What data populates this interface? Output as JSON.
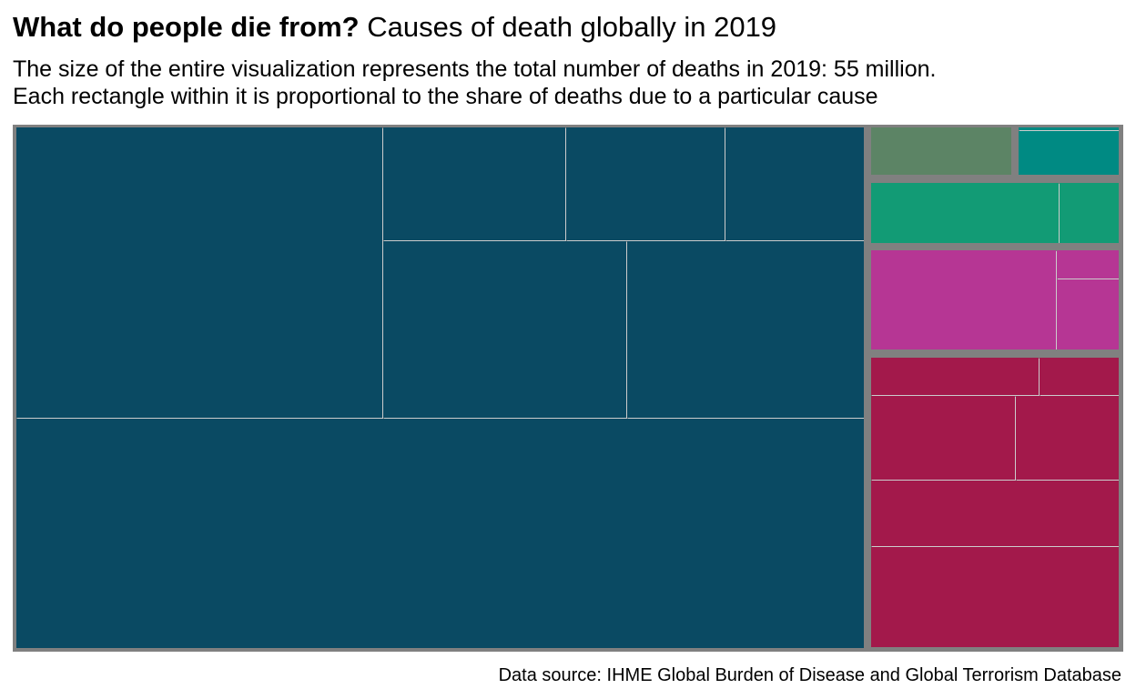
{
  "title": {
    "bold": "What do people die from?",
    "rest": "Causes of death globally in 2019"
  },
  "subtitle": [
    "The size of the entire visualization represents the total number of deaths in 2019: 55 million.",
    "Each rectangle within it is proportional to the share of deaths due to a particular cause"
  ],
  "source": "Data source: IHME Global Burden of Disease and Global Terrorism Database",
  "chart_data": {
    "type": "treemap",
    "total": "55 million",
    "labels_shown": false,
    "background": "#808080",
    "divider_color": "#cccccc",
    "groups": [
      {
        "color": "#0a4a63",
        "cells": 7
      },
      {
        "color": "#5c8465",
        "cells": 1
      },
      {
        "color": "#008a83",
        "cells": 2
      },
      {
        "color": "#129b75",
        "cells": 2
      },
      {
        "color": "#b63694",
        "cells": 3
      },
      {
        "color": "#a3194b",
        "cells": 6
      }
    ]
  }
}
